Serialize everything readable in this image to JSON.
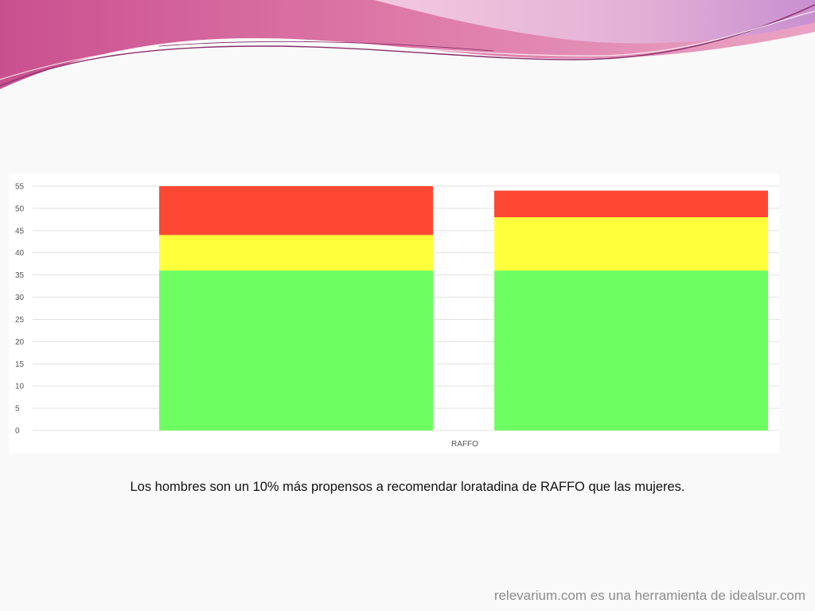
{
  "caption": "Los hombres son un 10% más propensos a recomendar loratadina de RAFFO que las mujeres.",
  "footer": "relevarium.com es una herramienta de idealsur.com",
  "colors": {
    "series_low": "#6dff62",
    "series_mid": "#ffff3b",
    "series_high": "#ff4833",
    "grid": "#e0e0e0",
    "banner_pink": "#d9689e",
    "banner_light": "#e7b7d4"
  },
  "chart_data": {
    "type": "bar",
    "stacked": true,
    "categories": [
      "RAFFO"
    ],
    "groups": [
      {
        "segments": [
          36,
          8,
          11
        ]
      },
      {
        "segments": [
          36,
          12,
          6
        ]
      }
    ],
    "series_colors": [
      "#6dff62",
      "#ffff3b",
      "#ff4833"
    ],
    "ylim": [
      0,
      55
    ],
    "yticks": [
      "0",
      "5",
      "10",
      "15",
      "20",
      "25",
      "30",
      "35",
      "40",
      "45",
      "50",
      "55"
    ],
    "grid": true,
    "xlabel": "",
    "ylabel": ""
  }
}
